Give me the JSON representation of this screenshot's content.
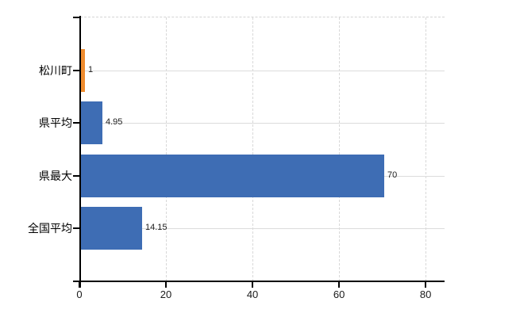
{
  "chart_data": {
    "type": "bar",
    "orientation": "horizontal",
    "title": "",
    "xlabel": "",
    "ylabel": "",
    "categories": [
      "松川町",
      "県平均",
      "県最大",
      "全国平均"
    ],
    "values": [
      1,
      4.95,
      70,
      14.15
    ],
    "value_labels": [
      "1",
      "4.95",
      "70",
      "14.15"
    ],
    "bar_colors": [
      "#ef8c2f",
      "#3e6db4",
      "#3e6db4",
      "#3e6db4"
    ],
    "xlim": [
      0,
      84.2
    ],
    "xticks": [
      0,
      20,
      40,
      60,
      80
    ],
    "xtick_labels": [
      "0",
      "20",
      "40",
      "60",
      "80"
    ],
    "grid": true,
    "legend": false,
    "colors": {
      "highlight_bar": "#ef8c2f",
      "default_bar": "#3e6db4",
      "grid": "#d8d8d8",
      "axis": "#000000",
      "background": "#ffffff"
    }
  }
}
